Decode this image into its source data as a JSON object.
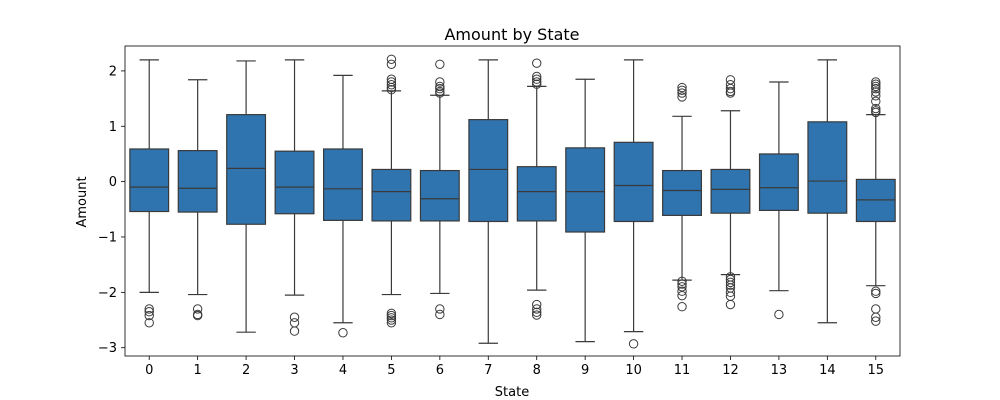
{
  "chart_data": {
    "type": "box",
    "title": "Amount by State",
    "xlabel": "State",
    "ylabel": "Amount",
    "ylim": [
      -3.15,
      2.45
    ],
    "yticks": [
      2,
      1,
      0,
      -1,
      -2,
      -3
    ],
    "ytick_labels": [
      "2",
      "1",
      "0",
      "−1",
      "−2",
      "−3"
    ],
    "grid": false,
    "box_color": "#2f74ae",
    "line_color": "#3a3a3a",
    "categories": [
      "0",
      "1",
      "2",
      "3",
      "4",
      "5",
      "6",
      "7",
      "8",
      "9",
      "10",
      "11",
      "12",
      "13",
      "14",
      "15"
    ],
    "boxes": [
      {
        "category": "0",
        "q1": -0.54,
        "median": -0.1,
        "q3": 0.59,
        "whisker_low": -2.0,
        "whisker_high": 2.2,
        "outliers": [
          -2.3,
          -2.35,
          -2.42,
          -2.55
        ]
      },
      {
        "category": "1",
        "q1": -0.55,
        "median": -0.12,
        "q3": 0.56,
        "whisker_low": -2.04,
        "whisker_high": 1.84,
        "outliers": [
          -2.3,
          -2.4,
          -2.42
        ]
      },
      {
        "category": "2",
        "q1": -0.77,
        "median": 0.24,
        "q3": 1.21,
        "whisker_low": -2.72,
        "whisker_high": 2.18,
        "outliers": []
      },
      {
        "category": "3",
        "q1": -0.58,
        "median": -0.1,
        "q3": 0.55,
        "whisker_low": -2.05,
        "whisker_high": 2.2,
        "outliers": [
          -2.45,
          -2.55,
          -2.7
        ]
      },
      {
        "category": "4",
        "q1": -0.7,
        "median": -0.13,
        "q3": 0.59,
        "whisker_low": -2.55,
        "whisker_high": 1.92,
        "outliers": [
          -2.73
        ]
      },
      {
        "category": "5",
        "q1": -0.71,
        "median": -0.18,
        "q3": 0.22,
        "whisker_low": -2.04,
        "whisker_high": 1.64,
        "outliers": [
          2.21,
          2.12,
          1.85,
          1.8,
          1.75,
          1.7,
          1.66,
          -2.38,
          -2.42,
          -2.46,
          -2.5,
          -2.55
        ]
      },
      {
        "category": "6",
        "q1": -0.71,
        "median": -0.31,
        "q3": 0.2,
        "whisker_low": -2.02,
        "whisker_high": 1.56,
        "outliers": [
          2.12,
          1.8,
          1.72,
          1.68,
          1.63,
          1.6,
          -2.3,
          -2.4
        ]
      },
      {
        "category": "7",
        "q1": -0.72,
        "median": 0.22,
        "q3": 1.12,
        "whisker_low": -2.92,
        "whisker_high": 2.2,
        "outliers": []
      },
      {
        "category": "8",
        "q1": -0.71,
        "median": -0.18,
        "q3": 0.27,
        "whisker_low": -1.96,
        "whisker_high": 1.72,
        "outliers": [
          2.14,
          1.9,
          1.85,
          1.8,
          1.76,
          -2.22,
          -2.3,
          -2.36,
          -2.41
        ]
      },
      {
        "category": "9",
        "q1": -0.91,
        "median": -0.18,
        "q3": 0.61,
        "whisker_low": -2.89,
        "whisker_high": 1.85,
        "outliers": []
      },
      {
        "category": "10",
        "q1": -0.72,
        "median": -0.07,
        "q3": 0.71,
        "whisker_low": -2.71,
        "whisker_high": 2.2,
        "outliers": [
          -2.93
        ]
      },
      {
        "category": "11",
        "q1": -0.61,
        "median": -0.16,
        "q3": 0.2,
        "whisker_low": -1.78,
        "whisker_high": 1.18,
        "outliers": [
          1.7,
          1.65,
          1.6,
          1.53,
          -1.8,
          -1.85,
          -1.9,
          -1.98,
          -2.06,
          -2.26
        ]
      },
      {
        "category": "12",
        "q1": -0.57,
        "median": -0.14,
        "q3": 0.22,
        "whisker_low": -1.68,
        "whisker_high": 1.28,
        "outliers": [
          1.84,
          1.75,
          1.68,
          1.63,
          1.6,
          -1.72,
          -1.77,
          -1.82,
          -1.87,
          -1.92,
          -2.0,
          -2.07,
          -2.22
        ]
      },
      {
        "category": "13",
        "q1": -0.52,
        "median": -0.11,
        "q3": 0.5,
        "whisker_low": -1.97,
        "whisker_high": 1.8,
        "outliers": [
          -2.4
        ]
      },
      {
        "category": "14",
        "q1": -0.57,
        "median": 0.01,
        "q3": 1.08,
        "whisker_low": -2.55,
        "whisker_high": 2.2,
        "outliers": []
      },
      {
        "category": "15",
        "q1": -0.72,
        "median": -0.33,
        "q3": 0.04,
        "whisker_low": -1.88,
        "whisker_high": 1.21,
        "outliers": [
          1.8,
          1.76,
          1.72,
          1.68,
          1.62,
          1.55,
          1.45,
          1.32,
          1.28,
          1.25,
          -1.98,
          -2.02,
          -2.3,
          -2.45,
          -2.52
        ]
      }
    ]
  }
}
